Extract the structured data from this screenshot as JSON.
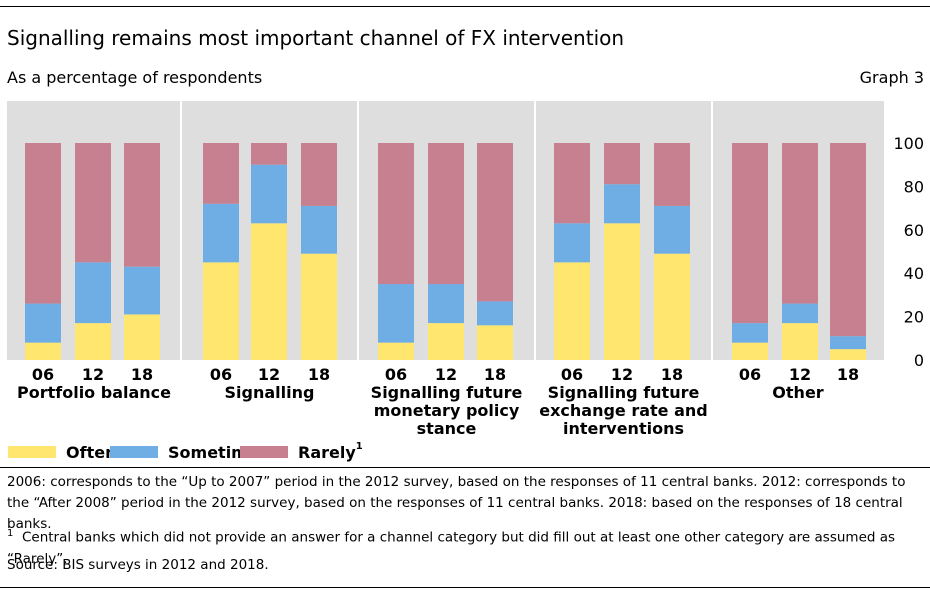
{
  "title": "Signalling remains most important channel of FX intervention",
  "subtitle": "As a percentage of respondents",
  "graph_label": "Graph 3",
  "colors": {
    "Often": "#ffe66f",
    "Sometimes": "#6eaee4",
    "Rarely": "#c7808f",
    "panel": "#dedede"
  },
  "legend": [
    {
      "label": "Often",
      "sup": ""
    },
    {
      "label": "Sometimes",
      "sup": ""
    },
    {
      "label": "Rarely",
      "sup": "1"
    }
  ],
  "chart_data": {
    "type": "bar",
    "stacked": true,
    "ylim": [
      0,
      100
    ],
    "yticks": [
      "0",
      "20",
      "40",
      "60",
      "80",
      "100"
    ],
    "groups": [
      {
        "label": [
          "Portfolio balance"
        ],
        "categories": [
          "06",
          "12",
          "18"
        ],
        "series": [
          {
            "name": "Often",
            "values": [
              8,
              17,
              21
            ]
          },
          {
            "name": "Sometimes",
            "values": [
              18,
              28,
              22
            ]
          },
          {
            "name": "Rarely",
            "values": [
              74,
              55,
              57
            ]
          }
        ]
      },
      {
        "label": [
          "Signalling"
        ],
        "categories": [
          "06",
          "12",
          "18"
        ],
        "series": [
          {
            "name": "Often",
            "values": [
              45,
              63,
              49
            ]
          },
          {
            "name": "Sometimes",
            "values": [
              27,
              27,
              22
            ]
          },
          {
            "name": "Rarely",
            "values": [
              28,
              10,
              29
            ]
          }
        ]
      },
      {
        "label": [
          "Signalling future",
          "monetary policy",
          "stance"
        ],
        "categories": [
          "06",
          "12",
          "18"
        ],
        "series": [
          {
            "name": "Often",
            "values": [
              8,
              17,
              16
            ]
          },
          {
            "name": "Sometimes",
            "values": [
              27,
              18,
              11
            ]
          },
          {
            "name": "Rarely",
            "values": [
              65,
              65,
              73
            ]
          }
        ]
      },
      {
        "label": [
          "Signalling future",
          "exchange rate and",
          "interventions"
        ],
        "categories": [
          "06",
          "12",
          "18"
        ],
        "series": [
          {
            "name": "Often",
            "values": [
              45,
              63,
              49
            ]
          },
          {
            "name": "Sometimes",
            "values": [
              18,
              18,
              22
            ]
          },
          {
            "name": "Rarely",
            "values": [
              37,
              19,
              29
            ]
          }
        ]
      },
      {
        "label": [
          "Other"
        ],
        "categories": [
          "06",
          "12",
          "18"
        ],
        "series": [
          {
            "name": "Often",
            "values": [
              8,
              17,
              5
            ]
          },
          {
            "name": "Sometimes",
            "values": [
              9,
              9,
              6
            ]
          },
          {
            "name": "Rarely",
            "values": [
              83,
              74,
              89
            ]
          }
        ]
      }
    ]
  },
  "notes": {
    "main": "2006: corresponds to the “Up to 2007” period in the 2012 survey, based on the responses of 11 central banks. 2012: corresponds to the “After 2008” period in the 2012 survey, based on the responses of 11 central banks. 2018: based on the responses of 18 central banks.",
    "footnote_mark": "1",
    "footnote": "Central banks which did not provide an answer for a channel category but did fill out at least one other category are assumed as “Rarely”.",
    "source": "Source: BIS surveys in 2012 and 2018."
  }
}
